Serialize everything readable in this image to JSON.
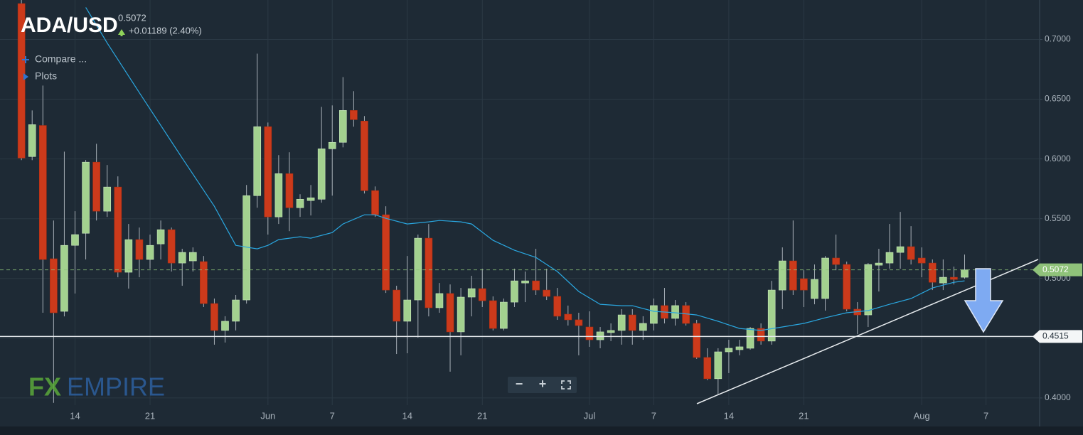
{
  "header": {
    "symbol": "ADA/USD",
    "price": "0.5072",
    "change": "+0.01189 (2.40%)"
  },
  "menu": [
    "Compare ...",
    "Plots"
  ],
  "watermark": [
    "FX",
    "EMPIRE"
  ],
  "zoom_controls": [
    "−",
    "+"
  ],
  "chart_data": {
    "type": "candlestick",
    "up_color": "#a3d18f",
    "down_color": "#cc3a1b",
    "wick_color": "#a8b0b8",
    "x": [
      "05-09",
      "05-10",
      "05-11",
      "05-12",
      "05-13",
      "05-14",
      "05-15",
      "05-16",
      "05-17",
      "05-18",
      "05-19",
      "05-20",
      "05-21",
      "05-22",
      "05-23",
      "05-24",
      "05-25",
      "05-26",
      "05-27",
      "05-28",
      "05-29",
      "05-30",
      "05-31",
      "06-01",
      "06-02",
      "06-03",
      "06-04",
      "06-05",
      "06-06",
      "06-07",
      "06-08",
      "06-09",
      "06-10",
      "06-11",
      "06-12",
      "06-13",
      "06-14",
      "06-15",
      "06-16",
      "06-17",
      "06-18",
      "06-19",
      "06-20",
      "06-21",
      "06-22",
      "06-23",
      "06-24",
      "06-25",
      "06-26",
      "06-27",
      "06-28",
      "06-29",
      "06-30",
      "07-01",
      "07-02",
      "07-03",
      "07-04",
      "07-05",
      "07-06",
      "07-07",
      "07-08",
      "07-09",
      "07-10",
      "07-11",
      "07-12",
      "07-13",
      "07-14",
      "07-15",
      "07-16",
      "07-17",
      "07-18",
      "07-19",
      "07-20",
      "07-21",
      "07-22",
      "07-23",
      "07-24",
      "07-25",
      "07-26",
      "07-27",
      "07-28",
      "07-29",
      "07-30",
      "07-31",
      "08-01",
      "08-02",
      "08-03",
      "08-04",
      "08-05"
    ],
    "open": [
      0.73,
      0.602,
      0.628,
      0.5165,
      0.4725,
      0.5277,
      0.5378,
      0.5973,
      0.5563,
      0.5765,
      0.5052,
      0.5325,
      0.5159,
      0.5289,
      0.5408,
      0.5129,
      0.5147,
      0.5141,
      0.479,
      0.4565,
      0.4642,
      0.482,
      0.5693,
      0.627,
      0.5515,
      0.5877,
      0.5592,
      0.5652,
      0.5663,
      0.6085,
      0.6139,
      0.6406,
      0.6317,
      0.5735,
      0.5533,
      0.4903,
      0.4642,
      0.482,
      0.5337,
      0.4755,
      0.4874,
      0.4553,
      0.4844,
      0.4915,
      0.4814,
      0.4582,
      0.4802,
      0.4962,
      0.498,
      0.4903,
      0.485,
      0.4701,
      0.4654,
      0.4594,
      0.4487,
      0.4547,
      0.4565,
      0.4695,
      0.4565,
      0.4624,
      0.4773,
      0.4666,
      0.4773,
      0.4624,
      0.4339,
      0.4161,
      0.4386,
      0.4404,
      0.4416,
      0.4582,
      0.4476,
      0.4903,
      0.5147,
      0.4998,
      0.4832,
      0.4832,
      0.5171,
      0.5117,
      0.4743,
      0.4695,
      0.5111,
      0.5129,
      0.5218,
      0.5266,
      0.5171,
      0.5129,
      0.4962,
      0.501,
      0.501
    ],
    "high": [
      0.74,
      0.6406,
      0.6614,
      0.5485,
      0.6061,
      0.5563,
      0.5991,
      0.6127,
      0.5949,
      0.5854,
      0.5456,
      0.5426,
      0.5367,
      0.5485,
      0.5426,
      0.5248,
      0.526,
      0.5188,
      0.4832,
      0.4684,
      0.4862,
      0.5782,
      0.6881,
      0.6305,
      0.6032,
      0.6056,
      0.5705,
      0.5782,
      0.6436,
      0.6448,
      0.6685,
      0.6567,
      0.6359,
      0.577,
      0.5604,
      0.4939,
      0.5188,
      0.5367,
      0.5456,
      0.4962,
      0.495,
      0.4921,
      0.5022,
      0.5082,
      0.485,
      0.4832,
      0.5082,
      0.5058,
      0.5248,
      0.5082,
      0.4921,
      0.4773,
      0.4713,
      0.4725,
      0.4594,
      0.4624,
      0.4743,
      0.4743,
      0.4684,
      0.4832,
      0.4921,
      0.482,
      0.4802,
      0.4654,
      0.4416,
      0.4416,
      0.4487,
      0.4487,
      0.4594,
      0.4624,
      0.498,
      0.526,
      0.5485,
      0.5069,
      0.5117,
      0.5188,
      0.5367,
      0.5141,
      0.4802,
      0.5129,
      0.5248,
      0.5456,
      0.5557,
      0.5438,
      0.526,
      0.5159,
      0.5159,
      0.5099,
      0.52
    ],
    "low": [
      0.599,
      0.599,
      0.4713,
      0.3959,
      0.4683,
      0.4874,
      0.5159,
      0.5485,
      0.5515,
      0.501,
      0.4915,
      0.501,
      0.5082,
      0.5159,
      0.5058,
      0.4939,
      0.5058,
      0.4761,
      0.4446,
      0.4464,
      0.4565,
      0.479,
      0.5592,
      0.5367,
      0.5456,
      0.5396,
      0.5515,
      0.5527,
      0.5634,
      0.5693,
      0.6097,
      0.627,
      0.5711,
      0.5515,
      0.4879,
      0.4368,
      0.4374,
      0.4505,
      0.4683,
      0.4713,
      0.422,
      0.4357,
      0.4683,
      0.4761,
      0.4565,
      0.4565,
      0.4761,
      0.4802,
      0.4862,
      0.482,
      0.4654,
      0.4606,
      0.4357,
      0.4428,
      0.4416,
      0.4476,
      0.4446,
      0.4446,
      0.4487,
      0.4565,
      0.4624,
      0.4606,
      0.4606,
      0.4327,
      0.4149,
      0.403,
      0.4208,
      0.4357,
      0.4404,
      0.4446,
      0.4446,
      0.4743,
      0.4862,
      0.4761,
      0.4784,
      0.4731,
      0.5069,
      0.4725,
      0.4535,
      0.4594,
      0.4891,
      0.5082,
      0.5082,
      0.5117,
      0.501,
      0.4903,
      0.4903,
      0.495,
      0.4998
    ],
    "close": [
      0.6008,
      0.6287,
      0.5159,
      0.4713,
      0.5277,
      0.5367,
      0.5973,
      0.5563,
      0.5765,
      0.5052,
      0.5325,
      0.5159,
      0.5277,
      0.5408,
      0.5129,
      0.5218,
      0.5218,
      0.479,
      0.4565,
      0.4642,
      0.482,
      0.5693,
      0.627,
      0.5515,
      0.5877,
      0.5592,
      0.5663,
      0.5675,
      0.6085,
      0.6139,
      0.6406,
      0.6329,
      0.5735,
      0.5533,
      0.4903,
      0.4642,
      0.482,
      0.5337,
      0.4755,
      0.4874,
      0.4553,
      0.4844,
      0.4915,
      0.4814,
      0.4582,
      0.4802,
      0.498,
      0.498,
      0.4903,
      0.485,
      0.4684,
      0.4654,
      0.4606,
      0.4487,
      0.4553,
      0.4565,
      0.4695,
      0.4565,
      0.4624,
      0.4773,
      0.4666,
      0.4773,
      0.4624,
      0.4339,
      0.4161,
      0.4386,
      0.4416,
      0.4428,
      0.4582,
      0.4476,
      0.4903,
      0.5147,
      0.4903,
      0.4903,
      0.4992,
      0.5171,
      0.5117,
      0.4743,
      0.4695,
      0.5117,
      0.5129,
      0.5218,
      0.5266,
      0.5159,
      0.5129,
      0.4968,
      0.501,
      0.4992,
      0.5072
    ],
    "ma_line": {
      "color": "#2aa7e0",
      "x": [
        "05-15",
        "05-17",
        "05-20",
        "05-24",
        "05-27",
        "05-29",
        "05-31",
        "06-01",
        "06-02",
        "06-04",
        "06-05",
        "06-07",
        "06-08",
        "06-10",
        "06-11",
        "06-12",
        "06-14",
        "06-16",
        "06-17",
        "06-19",
        "06-20",
        "06-22",
        "06-24",
        "06-26",
        "06-28",
        "06-30",
        "07-02",
        "07-04",
        "07-05",
        "07-07",
        "07-09",
        "07-11",
        "07-13",
        "07-15",
        "07-17",
        "07-19",
        "07-21",
        "07-23",
        "07-25",
        "07-27",
        "07-29",
        "07-31",
        "08-02",
        "08-04",
        "08-05"
      ],
      "values": [
        0.7268,
        0.6971,
        0.6555,
        0.6008,
        0.5604,
        0.5277,
        0.5248,
        0.5277,
        0.5325,
        0.5349,
        0.5337,
        0.5384,
        0.5456,
        0.5533,
        0.5533,
        0.5503,
        0.5456,
        0.5474,
        0.5485,
        0.5474,
        0.5456,
        0.5319,
        0.5236,
        0.5176,
        0.5058,
        0.4891,
        0.4784,
        0.4772,
        0.4772,
        0.4725,
        0.4713,
        0.4695,
        0.4642,
        0.4582,
        0.4565,
        0.4594,
        0.4624,
        0.4671,
        0.4713,
        0.4731,
        0.4784,
        0.4832,
        0.4921,
        0.4968,
        0.498
      ]
    },
    "last_price": 0.5072,
    "last_price_color": "#8fc27a",
    "support_level": 0.4515,
    "xlim": [
      "05-07",
      "08-12"
    ],
    "xticks": [
      {
        "value": "05-14",
        "label": "14"
      },
      {
        "value": "05-21",
        "label": "21"
      },
      {
        "value": "06-01",
        "label": "Jun"
      },
      {
        "value": "06-07",
        "label": "7"
      },
      {
        "value": "06-14",
        "label": "14"
      },
      {
        "value": "06-21",
        "label": "21"
      },
      {
        "value": "07-01",
        "label": "Jul"
      },
      {
        "value": "07-07",
        "label": "7"
      },
      {
        "value": "07-14",
        "label": "14"
      },
      {
        "value": "07-21",
        "label": "21"
      },
      {
        "value": "08-01",
        "label": "Aug"
      },
      {
        "value": "08-07",
        "label": "7"
      }
    ],
    "ylim": [
      0.394,
      0.733
    ],
    "yticks": [
      {
        "value": 0.4,
        "label": "0.4000"
      },
      {
        "value": 0.45,
        "label": "0.4500"
      },
      {
        "value": 0.5,
        "label": "0.5000"
      },
      {
        "value": 0.55,
        "label": "0.5500"
      },
      {
        "value": 0.6,
        "label": "0.6000"
      },
      {
        "value": 0.65,
        "label": "0.6500"
      },
      {
        "value": 0.7,
        "label": "0.7000"
      }
    ],
    "grid": true
  }
}
